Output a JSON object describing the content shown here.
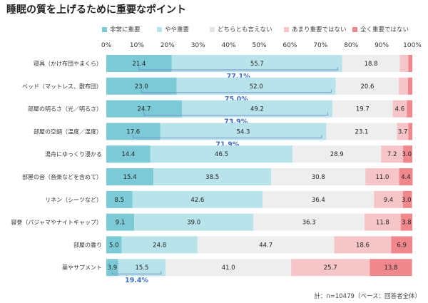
{
  "title": "睡眠の質を上げるために重要なポイント",
  "footnote": "計：n=10479（ベース：回答者全体）",
  "colors": {
    "very_important": "#7bcad6",
    "somewhat_important": "#b9e3ea",
    "neutral": "#eeeeee",
    "not_very": "#f5c5c8",
    "not_at_all": "#ef878d",
    "accent_text": "#3d6ec9",
    "bracket": "#6f8fc7"
  },
  "chart_data": {
    "type": "bar",
    "orientation": "horizontal",
    "stacked": true,
    "title": "睡眠の質を上げるために重要なポイント",
    "xlim": [
      0,
      100
    ],
    "x_ticks": [
      "0%",
      "10%",
      "20%",
      "30%",
      "40%",
      "50%",
      "60%",
      "70%",
      "80%",
      "90%",
      "100%"
    ],
    "categories": [
      "寝具（かけ布団やまくら）",
      "ベッド（マットレス、敷布団）",
      "部屋の明るさ（光／明るさ）",
      "部屋の空調（温度／湿度）",
      "湯舟にゆっくり浸かる",
      "部屋の音（音楽などを含めて）",
      "リネン（シーツなど）",
      "寝巻（パジャマやナイトキャップ）",
      "部屋の香り",
      "薬やサプメント"
    ],
    "series": [
      {
        "name": "非常に重要",
        "color": "#7bcad6",
        "values": [
          21.4,
          23.0,
          24.7,
          17.6,
          14.4,
          15.4,
          8.5,
          9.1,
          5.0,
          3.9
        ]
      },
      {
        "name": "やや重要",
        "color": "#b9e3ea",
        "values": [
          55.7,
          52.0,
          49.2,
          54.3,
          46.5,
          38.5,
          42.6,
          39.0,
          24.8,
          15.5
        ]
      },
      {
        "name": "どちらとも言えない",
        "color": "#eeeeee",
        "values": [
          18.8,
          20.6,
          19.7,
          23.1,
          28.9,
          30.8,
          36.4,
          36.3,
          44.7,
          41.0
        ]
      },
      {
        "name": "あまり重要ではない",
        "color": "#f5c5c8",
        "values": [
          null,
          null,
          4.6,
          3.7,
          7.2,
          11.0,
          9.4,
          11.8,
          18.6,
          25.7
        ]
      },
      {
        "name": "全く重要ではない",
        "color": "#ef878d",
        "values": [
          null,
          null,
          null,
          null,
          3.0,
          4.4,
          3.0,
          3.8,
          6.9,
          13.8
        ]
      }
    ],
    "hidden_segments": [
      {
        "category": "寝具（かけ布団やまくら）",
        "values": [
          2.8,
          1.3
        ]
      },
      {
        "category": "ベッド（マットレス、敷布団）",
        "values": [
          3.0,
          1.4
        ]
      },
      {
        "category": "部屋の明るさ（光／明るさ）",
        "values": [
          null,
          1.8
        ]
      },
      {
        "category": "部屋の空調（温度／湿度）",
        "values": [
          null,
          1.3
        ]
      }
    ],
    "top2_totals": [
      "77.1%",
      "75.0%",
      "73.9%",
      "71.9%",
      null,
      null,
      null,
      null,
      null,
      "19.4%"
    ]
  }
}
